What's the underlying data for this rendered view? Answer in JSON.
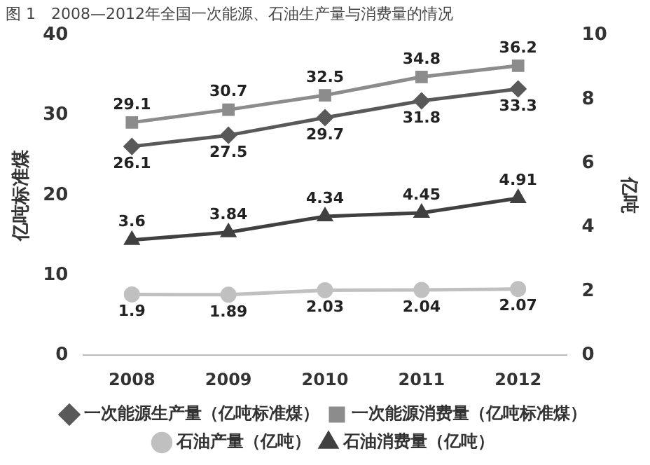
{
  "chart_data": {
    "type": "line",
    "title": "图 1　2008—2012年全国一次能源、石油生产量与消费量的情况",
    "ylabel": "亿吨标准煤",
    "y2label": "亿吨",
    "categories": [
      "2008",
      "2009",
      "2010",
      "2011",
      "2012"
    ],
    "ylim": [
      0,
      40
    ],
    "yticks": [
      0,
      10,
      20,
      30,
      40
    ],
    "y2lim": [
      0,
      10
    ],
    "y2ticks": [
      0,
      2,
      4,
      6,
      8,
      10
    ],
    "series": [
      {
        "name": "一次能源生产量（亿吨标准煤）",
        "color": "#595959",
        "marker": "diamond",
        "values": [
          26.1,
          27.5,
          29.7,
          31.8,
          33.3
        ]
      },
      {
        "name": "一次能源消费量（亿吨标准煤）",
        "color": "#8c8c8c",
        "marker": "square",
        "values": [
          29.1,
          30.7,
          32.5,
          34.8,
          36.2
        ]
      },
      {
        "name": "石油产量（亿吨）",
        "color": "#c0c0c0",
        "marker": "circle",
        "axis": "y2",
        "values": [
          1.9,
          1.89,
          2.03,
          2.04,
          2.07
        ]
      },
      {
        "name": "石油消费量（亿吨）",
        "color": "#404040",
        "marker": "triangle",
        "axis": "y2",
        "values": [
          3.6,
          3.84,
          4.34,
          4.45,
          4.91
        ]
      }
    ],
    "data_labels": true,
    "grid": false,
    "legend": "bottom"
  }
}
